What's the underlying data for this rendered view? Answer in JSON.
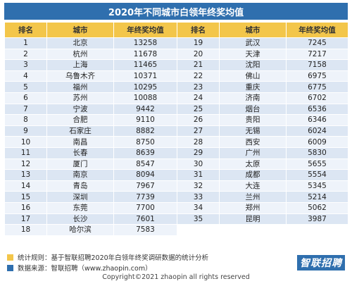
{
  "title": "2020年不同城市白领年终奖均值",
  "headers": [
    "排名",
    "城市",
    "年终奖均值",
    "排名",
    "城市",
    "年终奖均值"
  ],
  "left": [
    {
      "rank": "1",
      "city": "北京",
      "value": "13258"
    },
    {
      "rank": "2",
      "city": "杭州",
      "value": "11678"
    },
    {
      "rank": "3",
      "city": "上海",
      "value": "11465"
    },
    {
      "rank": "4",
      "city": "乌鲁木齐",
      "value": "10371"
    },
    {
      "rank": "5",
      "city": "福州",
      "value": "10295"
    },
    {
      "rank": "6",
      "city": "苏州",
      "value": "10088"
    },
    {
      "rank": "7",
      "city": "宁波",
      "value": "9442"
    },
    {
      "rank": "8",
      "city": "合肥",
      "value": "9110"
    },
    {
      "rank": "9",
      "city": "石家庄",
      "value": "8882"
    },
    {
      "rank": "10",
      "city": "南昌",
      "value": "8750"
    },
    {
      "rank": "11",
      "city": "长春",
      "value": "8639"
    },
    {
      "rank": "12",
      "city": "厦门",
      "value": "8547"
    },
    {
      "rank": "13",
      "city": "南京",
      "value": "8094"
    },
    {
      "rank": "14",
      "city": "青岛",
      "value": "7967"
    },
    {
      "rank": "15",
      "city": "深圳",
      "value": "7739"
    },
    {
      "rank": "16",
      "city": "东莞",
      "value": "7700"
    },
    {
      "rank": "17",
      "city": "长沙",
      "value": "7601"
    },
    {
      "rank": "18",
      "city": "哈尔滨",
      "value": "7583"
    }
  ],
  "right": [
    {
      "rank": "19",
      "city": "武汉",
      "value": "7245"
    },
    {
      "rank": "20",
      "city": "天津",
      "value": "7217"
    },
    {
      "rank": "21",
      "city": "沈阳",
      "value": "7158"
    },
    {
      "rank": "22",
      "city": "佛山",
      "value": "6975"
    },
    {
      "rank": "23",
      "city": "重庆",
      "value": "6775"
    },
    {
      "rank": "24",
      "city": "济南",
      "value": "6702"
    },
    {
      "rank": "25",
      "city": "烟台",
      "value": "6536"
    },
    {
      "rank": "26",
      "city": "贵阳",
      "value": "6346"
    },
    {
      "rank": "27",
      "city": "无锡",
      "value": "6024"
    },
    {
      "rank": "28",
      "city": "西安",
      "value": "6009"
    },
    {
      "rank": "29",
      "city": "广州",
      "value": "5830"
    },
    {
      "rank": "30",
      "city": "太原",
      "value": "5655"
    },
    {
      "rank": "31",
      "city": "成都",
      "value": "5554"
    },
    {
      "rank": "32",
      "city": "大连",
      "value": "5345"
    },
    {
      "rank": "33",
      "city": "兰州",
      "value": "5214"
    },
    {
      "rank": "34",
      "city": "郑州",
      "value": "5062"
    },
    {
      "rank": "35",
      "city": "昆明",
      "value": "3987"
    }
  ],
  "notes": {
    "rule": "统计规则：基于智联招聘2020年白领年终奖调研数据的统计分析",
    "source": "数据来源：智联招聘（www.zhaopin.com）"
  },
  "brand": "智联招聘",
  "copyright": "Copyright©2021 zhaopin all rights reserved",
  "colors": {
    "title_bg": "#2f6fae",
    "header_bg": "#f3c64a",
    "row_odd": "#dce6f3",
    "row_even": "#eef3fa"
  }
}
